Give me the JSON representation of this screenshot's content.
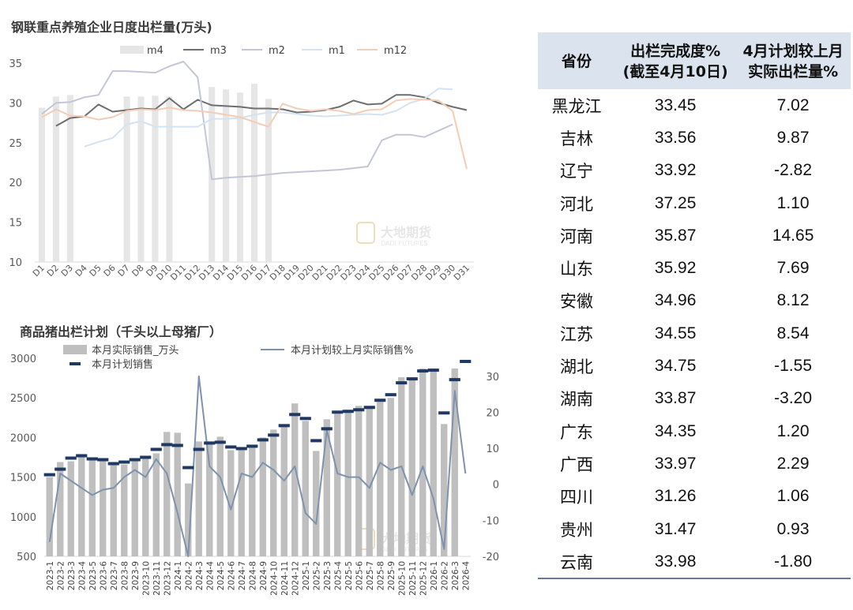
{
  "chart_data": [
    {
      "type": "bar+line",
      "title": "钢联重点养殖企业日度出栏量(万头)",
      "categories": [
        "D1",
        "D2",
        "D3",
        "D4",
        "D5",
        "D6",
        "D7",
        "D8",
        "D9",
        "D10",
        "D11",
        "D12",
        "D13",
        "D14",
        "D15",
        "D16",
        "D17",
        "D18",
        "D19",
        "D20",
        "D21",
        "D22",
        "D23",
        "D24",
        "D25",
        "D26",
        "D27",
        "D28",
        "D29",
        "D30",
        "D31"
      ],
      "ylim": [
        10,
        35
      ],
      "yticks": [
        10,
        15,
        20,
        25,
        30,
        35
      ],
      "series": [
        {
          "name": "m4",
          "kind": "bar",
          "color": "#e6e6e6",
          "values": [
            29.4,
            30.8,
            31.0,
            null,
            null,
            null,
            30.8,
            30.8,
            30.9,
            30.8,
            null,
            null,
            32.0,
            31.7,
            31.3,
            32.4,
            30.5,
            null,
            null,
            null,
            null,
            null,
            null,
            null,
            null,
            null,
            null,
            null,
            null,
            null,
            null
          ]
        },
        {
          "name": "m3",
          "kind": "line",
          "color": "#6e6e6e",
          "values": [
            null,
            27.1,
            28.1,
            28.3,
            29.8,
            28.9,
            29.1,
            29.3,
            29.2,
            30.6,
            29.2,
            30.4,
            29.7,
            29.6,
            29.5,
            29.3,
            29.3,
            29.2,
            28.8,
            28.9,
            29.1,
            29.5,
            30.3,
            29.8,
            29.9,
            31.0,
            31.0,
            30.7,
            30.0,
            29.5,
            29.1
          ]
        },
        {
          "name": "m2",
          "kind": "line",
          "color": "#c3c6d6",
          "values": [
            28.6,
            30.0,
            30.1,
            30.7,
            31.0,
            34.0,
            34.0,
            33.9,
            33.8,
            34.6,
            35.2,
            33.2,
            20.4,
            20.6,
            20.7,
            20.8,
            21.0,
            21.2,
            21.3,
            21.4,
            21.5,
            21.6,
            21.8,
            22.0,
            25.3,
            26.0,
            26.0,
            25.7,
            26.5,
            27.3,
            null
          ]
        },
        {
          "name": "m1",
          "kind": "line",
          "color": "#d3e3f3",
          "values": [
            null,
            null,
            null,
            24.5,
            25.1,
            25.6,
            27.3,
            27.7,
            27.0,
            27.0,
            27.0,
            27.0,
            28.0,
            28.0,
            28.1,
            28.5,
            28.8,
            28.8,
            28.6,
            28.4,
            28.3,
            28.4,
            28.5,
            28.6,
            28.5,
            29.0,
            30.0,
            30.5,
            31.8,
            31.7,
            null
          ]
        },
        {
          "name": "m12",
          "kind": "line",
          "color": "#f5cdb6",
          "values": [
            28.2,
            29.2,
            28.4,
            28.3,
            27.9,
            28.2,
            29.0,
            29.2,
            29.1,
            29.4,
            29.1,
            29.0,
            28.8,
            28.5,
            28.2,
            27.6,
            27.0,
            29.9,
            29.3,
            29.0,
            29.2,
            29.0,
            28.6,
            29.1,
            29.2,
            30.3,
            30.5,
            30.4,
            30.3,
            29.0,
            21.7
          ]
        }
      ],
      "watermark": {
        "name": "大地期货",
        "sub": "DADI FUTURES"
      }
    },
    {
      "type": "bar+line",
      "title": "商品猪出栏计划（千头以上母猪厂）",
      "categories": [
        "2023-1",
        "2023-2",
        "2023-3",
        "2023-4",
        "2023-5",
        "2023-6",
        "2023-7",
        "2023-8",
        "2023-9",
        "2023-10",
        "2023-11",
        "2023-12",
        "2024-1",
        "2024-2",
        "2024-3",
        "2024-4",
        "2024-5",
        "2024-6",
        "2024-7",
        "2024-8",
        "2024-9",
        "2024-10",
        "2024-11",
        "2024-12",
        "2025-1",
        "2025-2",
        "2025-3",
        "2025-4",
        "2025-5",
        "2025-6",
        "2025-7",
        "2025-8",
        "2025-9",
        "2025-10",
        "2025-11",
        "2025-12",
        "2026-1",
        "2026-2",
        "2026-3",
        "2026-4"
      ],
      "ylim_left": [
        500,
        3000
      ],
      "yticks_left": [
        500,
        1000,
        1500,
        2000,
        2500,
        3000
      ],
      "ylim_right": [
        -20,
        35
      ],
      "yticks_right": [
        -20,
        -10,
        0,
        10,
        20,
        30
      ],
      "series": [
        {
          "name": "本月实际销售_万头",
          "kind": "bar",
          "axis": "left",
          "color": "#bfbfbf",
          "values": [
            1500,
            1690,
            1700,
            1760,
            1720,
            1700,
            1650,
            1660,
            1700,
            1730,
            1800,
            2070,
            2060,
            1420,
            1950,
            1950,
            2010,
            1840,
            1840,
            1870,
            2000,
            2100,
            2150,
            2430,
            2210,
            1830,
            2230,
            2300,
            2350,
            2400,
            2380,
            2450,
            2500,
            2760,
            2740,
            2870,
            2840,
            2170,
            2870,
            null
          ]
        },
        {
          "name": "本月计划销售",
          "kind": "marker",
          "axis": "left",
          "color": "#1f3864",
          "values": [
            1530,
            1600,
            1740,
            1770,
            1730,
            1720,
            1670,
            1690,
            1720,
            1750,
            1850,
            1910,
            1900,
            1620,
            1850,
            1930,
            1940,
            1880,
            1860,
            1890,
            1970,
            2030,
            2150,
            2290,
            2240,
            1960,
            2110,
            2320,
            2330,
            2350,
            2380,
            2470,
            2540,
            2690,
            2740,
            2840,
            2850,
            2310,
            2730,
            2960
          ]
        },
        {
          "name": "本月计划较上月实际销售%",
          "kind": "line",
          "axis": "right",
          "color": "#7f92ad",
          "values": [
            -16,
            3,
            1,
            -1,
            -3,
            -1.5,
            -1,
            2,
            4,
            2,
            7,
            3,
            -8,
            -20,
            30,
            5,
            2,
            -7,
            3,
            2,
            6,
            4,
            1,
            5,
            -8,
            -11,
            15,
            3,
            2,
            2,
            -1,
            6,
            4,
            5,
            -3,
            5,
            -4,
            -18,
            26,
            3
          ]
        }
      ],
      "watermark": {
        "name": "大地期货",
        "sub": "DADI FUTURES"
      }
    },
    {
      "type": "table",
      "columns": [
        "省份",
        "出栏完成度%\n(截至4月10日)",
        "4月计划较上月\n实际出栏量%"
      ],
      "rows": [
        [
          "黑龙江",
          "33.45",
          "7.02"
        ],
        [
          "吉林",
          "33.56",
          "9.87"
        ],
        [
          "辽宁",
          "33.92",
          "-2.82"
        ],
        [
          "河北",
          "37.25",
          "1.10"
        ],
        [
          "河南",
          "35.87",
          "14.65"
        ],
        [
          "山东",
          "35.92",
          "7.69"
        ],
        [
          "安徽",
          "34.96",
          "8.12"
        ],
        [
          "江苏",
          "34.55",
          "8.54"
        ],
        [
          "湖北",
          "34.75",
          "-1.55"
        ],
        [
          "湖南",
          "33.87",
          "-3.20"
        ],
        [
          "广东",
          "34.35",
          "1.20"
        ],
        [
          "广西",
          "33.97",
          "2.29"
        ],
        [
          "四川",
          "31.26",
          "1.06"
        ],
        [
          "贵州",
          "31.47",
          "0.93"
        ],
        [
          "云南",
          "33.98",
          "-1.80"
        ]
      ]
    }
  ]
}
